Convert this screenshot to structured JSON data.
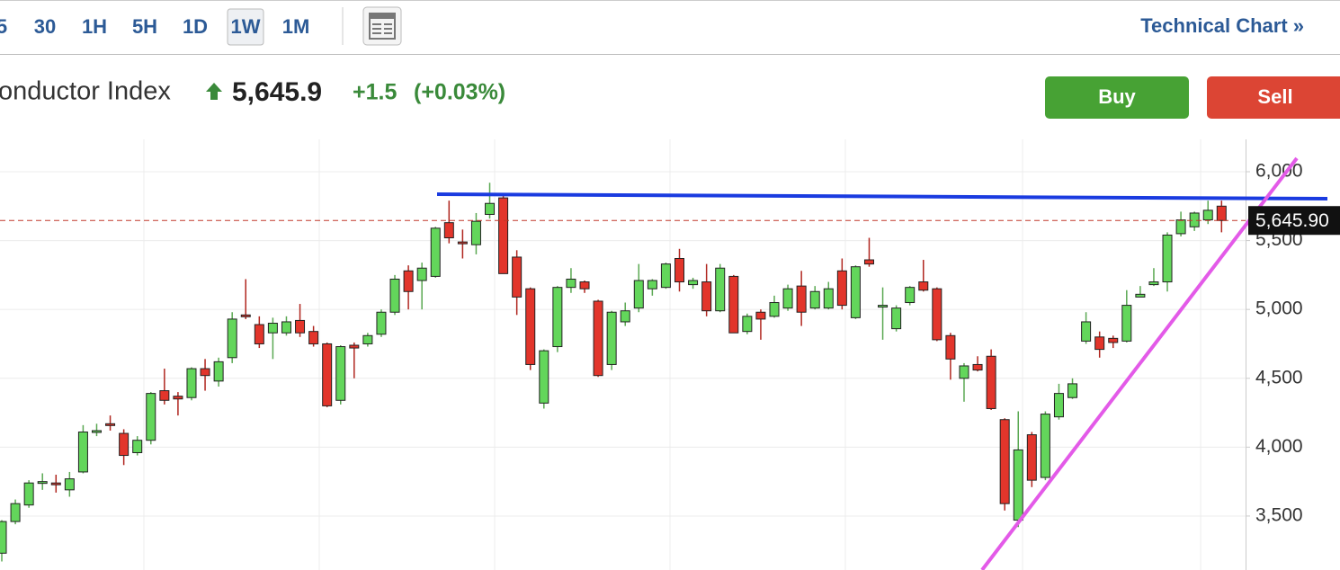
{
  "toolbar": {
    "intervals": [
      "5",
      "30",
      "1H",
      "5H",
      "1D",
      "1W",
      "1M"
    ],
    "selected": "1W",
    "link": "Technical Chart »"
  },
  "header": {
    "name": "onductor Index",
    "price": "5,645.9",
    "change": "+1.5",
    "change_pct": "(+0.03%)"
  },
  "buttons": {
    "buy": "Buy",
    "sell": "Sell"
  },
  "chart_data": {
    "type": "candlestick",
    "open": [
      3230,
      3460,
      3580,
      3740,
      3740,
      3690,
      3820,
      4110,
      4170,
      4100,
      3960,
      4050,
      4410,
      4370,
      4360,
      4570,
      4480,
      4650,
      4960,
      4890,
      4830,
      4830,
      4920,
      4840,
      4750,
      4340,
      4740,
      4750,
      4820,
      4980,
      5280,
      5210,
      5240,
      5630,
      5490,
      5470,
      5690,
      5810,
      5380,
      5150,
      4320,
      4730,
      5160,
      5200,
      5060,
      4600,
      4910,
      5010,
      5150,
      5160,
      5370,
      5180,
      5200,
      4990,
      5240,
      4840,
      4980,
      4950,
      5010,
      5170,
      5010,
      5010,
      5280,
      4940,
      5360,
      5020,
      4860,
      5050,
      5200,
      5150,
      4810,
      4500,
      4600,
      4660,
      4200,
      3470,
      4090,
      3780,
      4220,
      4360,
      4770,
      4800,
      4790,
      4770,
      5090,
      5180,
      5200,
      5550,
      5600,
      5650,
      5750
    ],
    "high": [
      3470,
      3620,
      3760,
      3810,
      3800,
      3820,
      4160,
      4170,
      4230,
      4130,
      4080,
      4400,
      4570,
      4400,
      4580,
      4640,
      4650,
      4980,
      5220,
      4950,
      4940,
      4950,
      5040,
      4880,
      4760,
      4740,
      4760,
      4830,
      5000,
      5250,
      5320,
      5340,
      5600,
      5790,
      5580,
      5700,
      5920,
      5840,
      5430,
      5160,
      4710,
      5170,
      5300,
      5210,
      5070,
      4990,
      5050,
      5330,
      5220,
      5340,
      5440,
      5230,
      5330,
      5330,
      5250,
      4970,
      5000,
      5100,
      5180,
      5280,
      5170,
      5200,
      5370,
      5320,
      5520,
      5160,
      5030,
      5170,
      5360,
      5160,
      4830,
      4610,
      4660,
      4710,
      4210,
      4260,
      4110,
      4260,
      4460,
      4500,
      4980,
      4840,
      4810,
      5140,
      5170,
      5300,
      5560,
      5710,
      5710,
      5790,
      5790
    ],
    "low": [
      3170,
      3440,
      3560,
      3690,
      3670,
      3640,
      3810,
      4080,
      4120,
      3870,
      3940,
      4020,
      4310,
      4230,
      4340,
      4410,
      4440,
      4610,
      4930,
      4720,
      4640,
      4810,
      4800,
      4730,
      4290,
      4310,
      4500,
      4730,
      4800,
      4960,
      5000,
      5000,
      5230,
      5480,
      5370,
      5400,
      5660,
      5260,
      4960,
      4560,
      4280,
      4690,
      5120,
      5120,
      4510,
      4560,
      4880,
      4980,
      5100,
      5150,
      5130,
      5150,
      4950,
      4980,
      4830,
      4820,
      4780,
      4940,
      4990,
      4880,
      5000,
      5000,
      5000,
      4930,
      5310,
      4780,
      4840,
      5030,
      5130,
      4770,
      4490,
      4330,
      4550,
      4270,
      3540,
      3420,
      3710,
      3760,
      4200,
      4350,
      4750,
      4650,
      4720,
      4760,
      5090,
      5170,
      5130,
      5530,
      5570,
      5620,
      5560
    ],
    "close": [
      3460,
      3590,
      3740,
      3750,
      3730,
      3770,
      4110,
      4120,
      4160,
      3940,
      4050,
      4390,
      4340,
      4350,
      4570,
      4520,
      4620,
      4930,
      4950,
      4750,
      4900,
      4910,
      4830,
      4750,
      4300,
      4730,
      4720,
      4810,
      4980,
      5220,
      5130,
      5300,
      5590,
      5520,
      5480,
      5640,
      5770,
      5260,
      5090,
      4600,
      4700,
      5160,
      5220,
      5150,
      4520,
      4980,
      4990,
      5210,
      5210,
      5330,
      5200,
      5210,
      4990,
      5300,
      4830,
      4950,
      4930,
      5050,
      5150,
      4980,
      5130,
      5150,
      5030,
      5310,
      5330,
      5030,
      5010,
      5160,
      5140,
      4780,
      4640,
      4590,
      4560,
      4280,
      3590,
      3980,
      3760,
      4240,
      4390,
      4460,
      4910,
      4710,
      4760,
      5030,
      5110,
      5200,
      5540,
      5650,
      5700,
      5720,
      5645.9
    ],
    "up_color": "#63d65b",
    "down_color": "#e2352b",
    "ylim": [
      3108,
      6235
    ],
    "yticks": [
      {
        "value": 3500,
        "label": "3,500"
      },
      {
        "value": 4000,
        "label": "4,000"
      },
      {
        "value": 4500,
        "label": "4,500"
      },
      {
        "value": 5000,
        "label": "5,000"
      },
      {
        "value": 5500,
        "label": "5,500"
      },
      {
        "value": 6000,
        "label": "6,000"
      }
    ],
    "last_price": {
      "value": 5645.9,
      "label": "5,645.90"
    },
    "grid": true
  }
}
